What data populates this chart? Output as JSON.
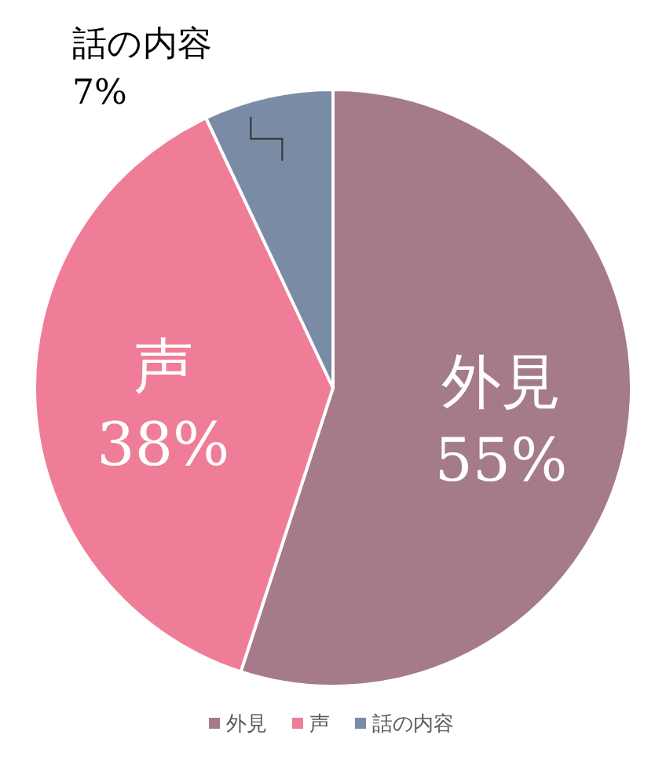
{
  "chart_data": {
    "type": "pie",
    "categories": [
      "外見",
      "声",
      "話の内容"
    ],
    "values": [
      55,
      38,
      7
    ],
    "value_labels": [
      "55%",
      "38%",
      "7%"
    ],
    "colors": [
      "#a57a8b",
      "#ef7d97",
      "#7a8ba5"
    ],
    "legend": "bottom"
  }
}
